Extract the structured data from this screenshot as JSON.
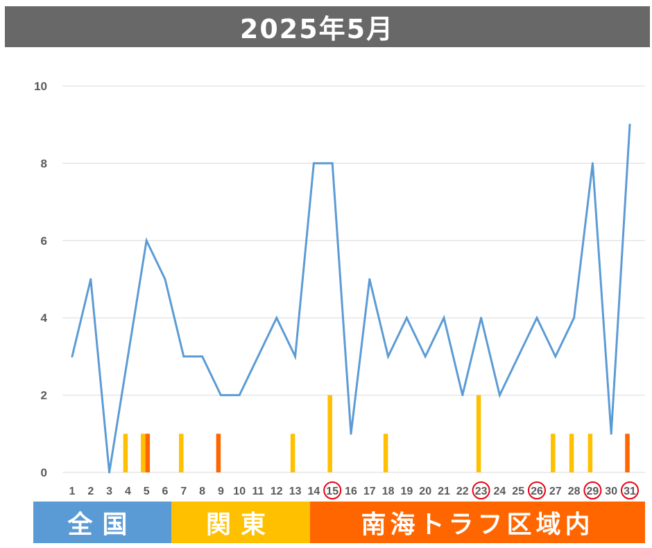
{
  "title": "2025年5月",
  "chart_data": {
    "type": "line",
    "x": [
      1,
      2,
      3,
      4,
      5,
      6,
      7,
      8,
      9,
      10,
      11,
      12,
      13,
      14,
      15,
      16,
      17,
      18,
      19,
      20,
      21,
      22,
      23,
      24,
      25,
      26,
      27,
      28,
      29,
      30,
      31
    ],
    "ylim": [
      0,
      10
    ],
    "yticks": [
      0,
      2,
      4,
      6,
      8,
      10
    ],
    "grid": true,
    "series": [
      {
        "values": [
          3,
          5,
          0,
          3,
          6,
          5,
          3,
          3,
          2,
          2,
          3,
          4,
          3,
          8,
          8,
          1,
          5,
          3,
          4,
          3,
          4,
          2,
          4,
          2,
          3,
          4,
          3,
          4,
          8,
          1,
          9
        ],
        "color": "#5B9BD5",
        "type": "line"
      },
      {
        "values": [
          0,
          0,
          0,
          1,
          1,
          0,
          1,
          0,
          0,
          0,
          0,
          0,
          1,
          0,
          2,
          0,
          0,
          1,
          0,
          0,
          0,
          0,
          2,
          0,
          0,
          0,
          1,
          1,
          1,
          0,
          0
        ],
        "color": "#FFC000",
        "type": "bar"
      },
      {
        "values": [
          0,
          0,
          0,
          0,
          1,
          0,
          0,
          0,
          1,
          0,
          0,
          0,
          0,
          0,
          0,
          0,
          0,
          0,
          0,
          0,
          0,
          0,
          0,
          0,
          0,
          0,
          0,
          0,
          0,
          0,
          1
        ],
        "color": "#FF6600",
        "type": "bar"
      }
    ],
    "circled_x": [
      15,
      23,
      26,
      29,
      31
    ]
  },
  "legend": [
    {
      "label": "全国",
      "color": "#5B9BD5"
    },
    {
      "label": "関東",
      "color": "#FFC000"
    },
    {
      "label": "南海トラフ区域内",
      "color": "#FF6600"
    }
  ]
}
